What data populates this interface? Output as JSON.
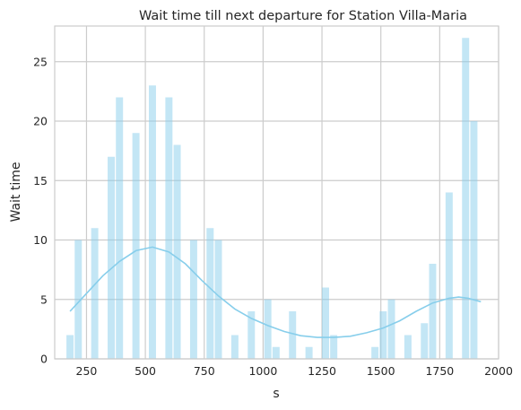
{
  "chart_data": {
    "type": "bar",
    "title": "Wait time till next departure for Station Villa-Maria",
    "xlabel": "s",
    "ylabel": "Wait time",
    "xlim": [
      115,
      2000
    ],
    "ylim": [
      0,
      28
    ],
    "xticks": [
      250,
      500,
      750,
      1000,
      1250,
      1500,
      1750,
      2000
    ],
    "yticks": [
      0,
      5,
      10,
      15,
      20,
      25
    ],
    "grid": true,
    "bin_width": 34.9,
    "bins": [
      {
        "x": 180,
        "value": 2
      },
      {
        "x": 215,
        "value": 10
      },
      {
        "x": 285,
        "value": 11
      },
      {
        "x": 355,
        "value": 17
      },
      {
        "x": 390,
        "value": 22
      },
      {
        "x": 460,
        "value": 19
      },
      {
        "x": 530,
        "value": 23
      },
      {
        "x": 600,
        "value": 22
      },
      {
        "x": 635,
        "value": 18
      },
      {
        "x": 705,
        "value": 10
      },
      {
        "x": 775,
        "value": 11
      },
      {
        "x": 810,
        "value": 10
      },
      {
        "x": 880,
        "value": 2
      },
      {
        "x": 950,
        "value": 4
      },
      {
        "x": 1020,
        "value": 5
      },
      {
        "x": 1055,
        "value": 1
      },
      {
        "x": 1125,
        "value": 4
      },
      {
        "x": 1195,
        "value": 1
      },
      {
        "x": 1265,
        "value": 6
      },
      {
        "x": 1300,
        "value": 2
      },
      {
        "x": 1475,
        "value": 1
      },
      {
        "x": 1510,
        "value": 4
      },
      {
        "x": 1545,
        "value": 5
      },
      {
        "x": 1615,
        "value": 2
      },
      {
        "x": 1685,
        "value": 3
      },
      {
        "x": 1720,
        "value": 8
      },
      {
        "x": 1790,
        "value": 14
      },
      {
        "x": 1860,
        "value": 27
      },
      {
        "x": 1895,
        "value": 20
      }
    ],
    "kde_line": {
      "x": [
        180,
        250,
        320,
        390,
        460,
        530,
        600,
        670,
        740,
        810,
        880,
        950,
        1020,
        1090,
        1160,
        1230,
        1300,
        1370,
        1440,
        1510,
        1580,
        1650,
        1720,
        1790,
        1830,
        1870,
        1925
      ],
      "y": [
        4.0,
        5.5,
        7.0,
        8.2,
        9.1,
        9.4,
        9.0,
        8.0,
        6.6,
        5.3,
        4.2,
        3.4,
        2.8,
        2.3,
        1.95,
        1.8,
        1.8,
        1.9,
        2.2,
        2.6,
        3.2,
        4.0,
        4.7,
        5.1,
        5.2,
        5.1,
        4.8
      ]
    },
    "colors": {
      "bars": "#87ceeb",
      "line": "#87ceeb",
      "grid": "#cccccc"
    }
  }
}
